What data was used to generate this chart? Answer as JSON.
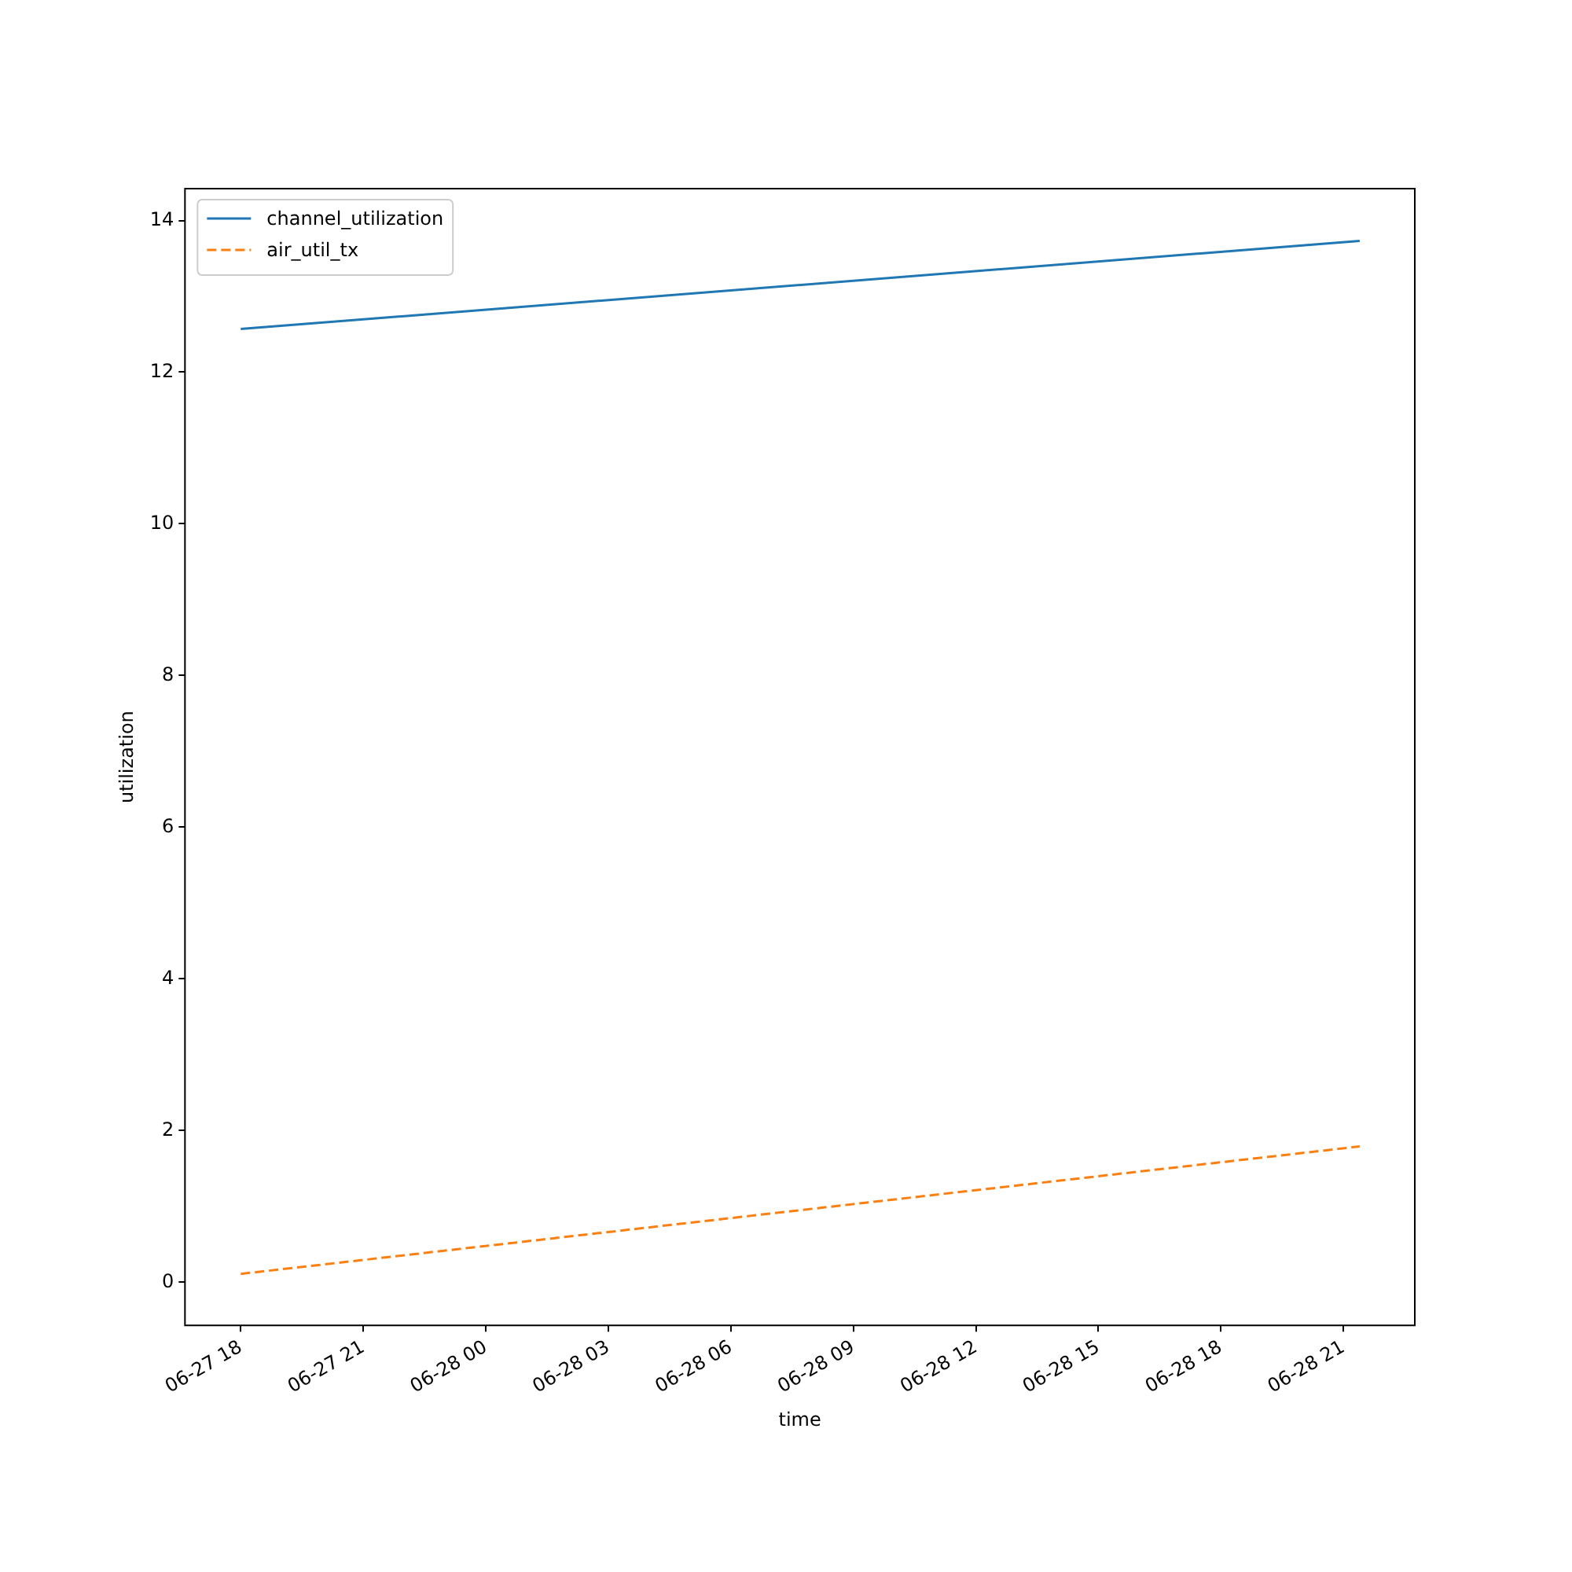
{
  "chart_data": {
    "type": "line",
    "xlabel": "time",
    "ylabel": "utilization",
    "x": [
      "--06-27T18:00",
      "--06-28T21:24"
    ],
    "series": [
      {
        "name": "channel_utilization",
        "color": "#1f77b4",
        "values": [
          12.57,
          13.73
        ],
        "line_style": "solid"
      },
      {
        "name": "air_util_tx",
        "color": "#ff7f0e",
        "values": [
          0.11,
          1.79
        ],
        "line_style": "dashed"
      }
    ],
    "xlim": [
      "--06-27T16:38",
      "--06-28T22:45"
    ],
    "xticks": [
      {
        "value": "--06-27T18:00",
        "label": "06-27 18"
      },
      {
        "value": "--06-27T21:00",
        "label": "06-27 21"
      },
      {
        "value": "--06-28T00:00",
        "label": "06-28 00"
      },
      {
        "value": "--06-28T03:00",
        "label": "06-28 03"
      },
      {
        "value": "--06-28T06:00",
        "label": "06-28 06"
      },
      {
        "value": "--06-28T09:00",
        "label": "06-28 09"
      },
      {
        "value": "--06-28T12:00",
        "label": "06-28 12"
      },
      {
        "value": "--06-28T15:00",
        "label": "06-28 15"
      },
      {
        "value": "--06-28T18:00",
        "label": "06-28 18"
      },
      {
        "value": "--06-28T21:00",
        "label": "06-28 21"
      }
    ],
    "ylim": [
      -0.57,
      14.42
    ],
    "yticks": [
      0,
      2,
      4,
      6,
      8,
      10,
      12,
      14
    ],
    "grid": false,
    "legend": "top left",
    "marker": "none"
  }
}
